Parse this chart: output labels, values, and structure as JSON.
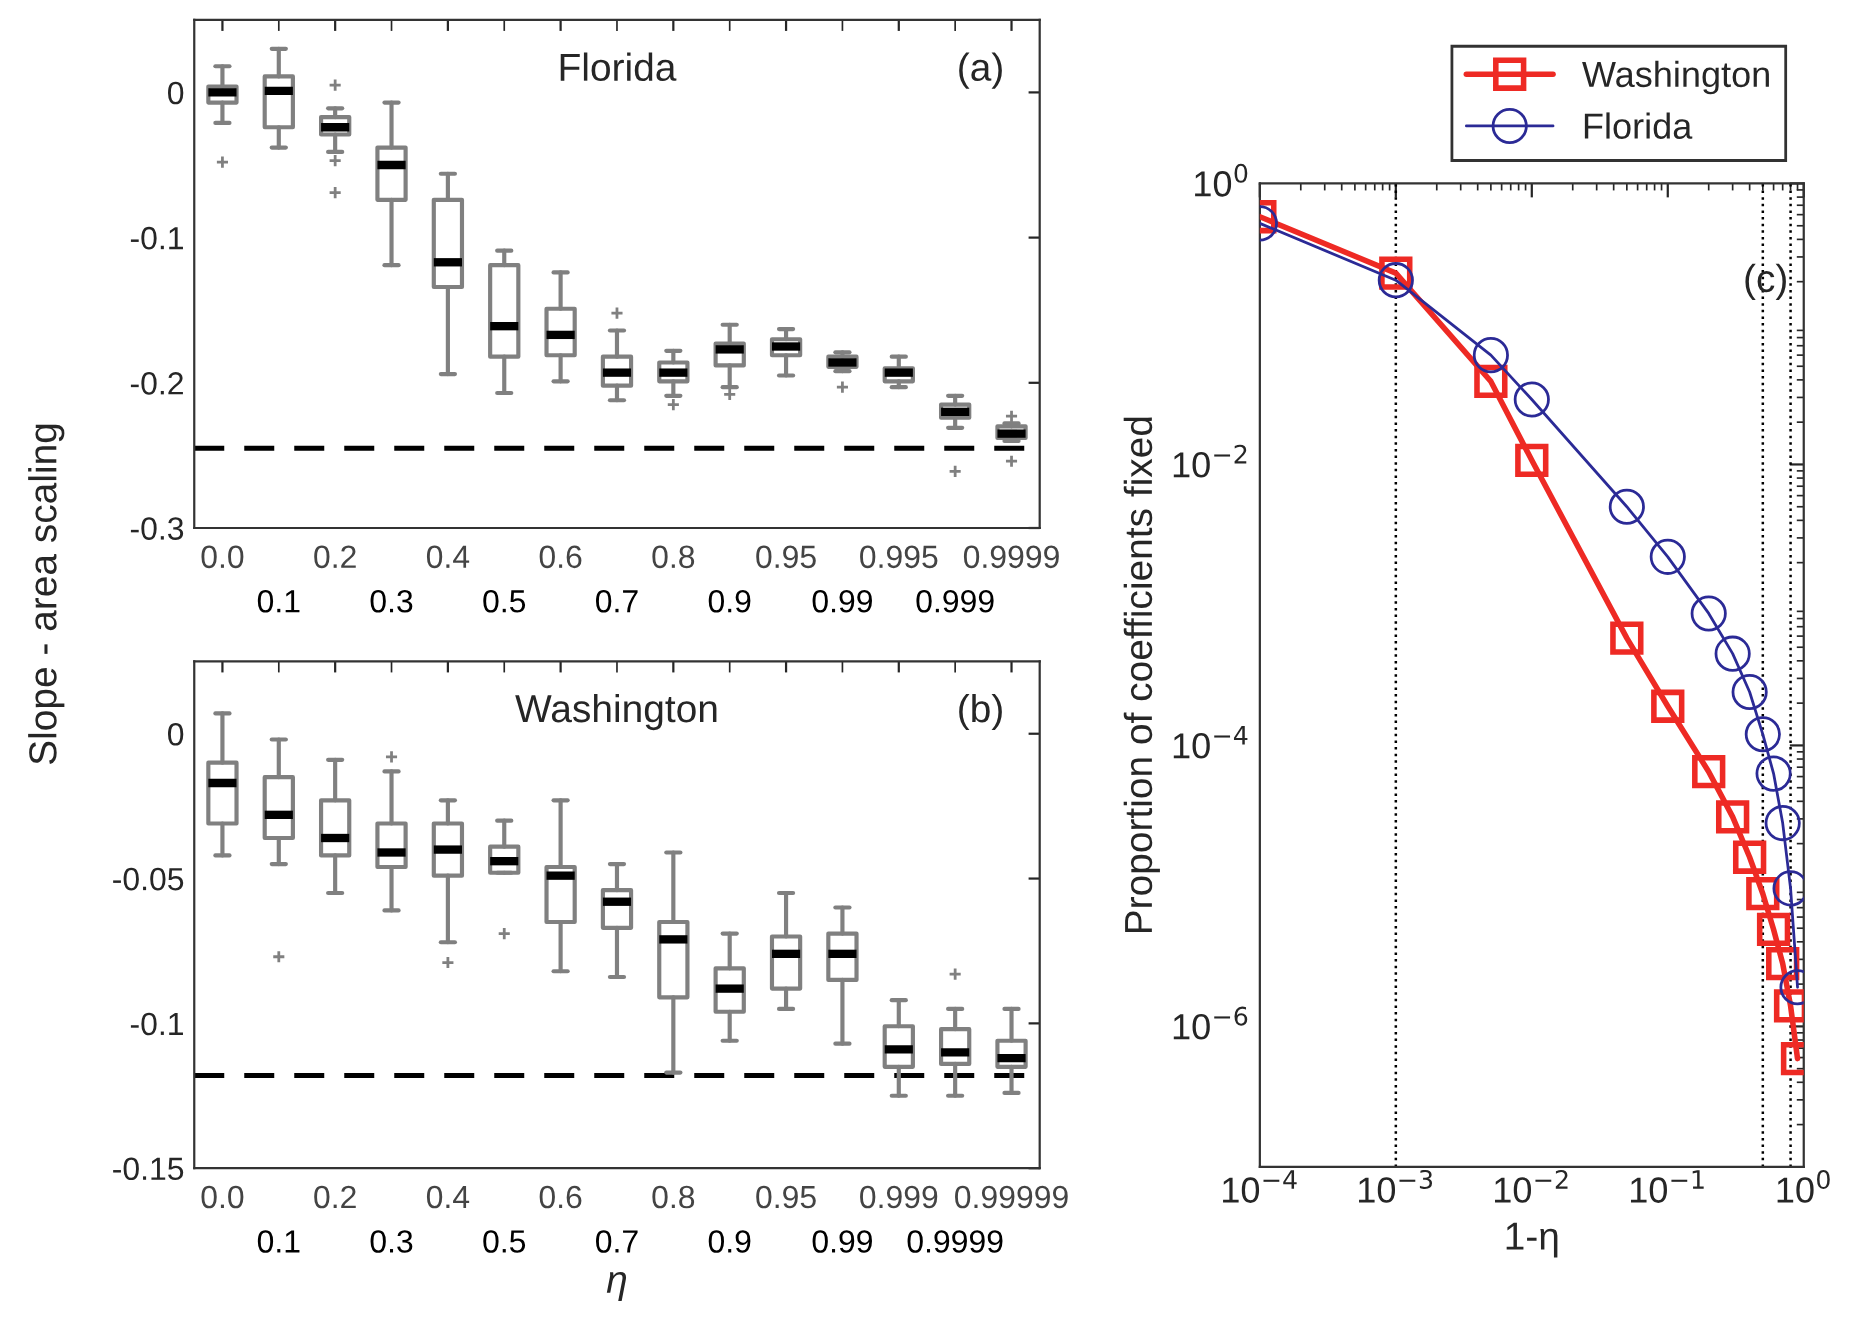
{
  "chart_data": [
    {
      "type": "box",
      "title": "Florida",
      "ylabel": "Slope - area scaling",
      "annotations": [
        "(a)"
      ],
      "categories": [
        "0.0",
        "0.1",
        "0.2",
        "0.3",
        "0.4",
        "0.5",
        "0.6",
        "0.7",
        "0.8",
        "0.9",
        "0.95",
        "0.99",
        "0.995",
        "0.999",
        "0.9999"
      ],
      "ylim": [
        -0.3,
        0.05
      ],
      "yticks": [
        -0.3,
        -0.2,
        -0.1,
        0
      ],
      "ref_lines": [
        {
          "axis": "y",
          "value": -0.245,
          "color": "#000000",
          "line_style": "dashed"
        }
      ],
      "series": [
        {
          "color": "#808080",
          "boxes": [
            {
              "low": -0.021,
              "q1": -0.007,
              "median": 0,
              "q3": 0.004,
              "high": 0.018,
              "outliers": [
                -0.048
              ]
            },
            {
              "low": -0.038,
              "q1": -0.024,
              "median": 0.001,
              "q3": 0.011,
              "high": 0.03
            },
            {
              "low": -0.041,
              "q1": -0.029,
              "median": -0.024,
              "q3": -0.017,
              "high": -0.011,
              "outliers": [
                0.005,
                -0.047,
                -0.069
              ]
            },
            {
              "low": -0.119,
              "q1": -0.074,
              "median": -0.05,
              "q3": -0.038,
              "high": -0.007
            },
            {
              "low": -0.194,
              "q1": -0.134,
              "median": -0.117,
              "q3": -0.074,
              "high": -0.056
            },
            {
              "low": -0.207,
              "q1": -0.182,
              "median": -0.161,
              "q3": -0.119,
              "high": -0.109
            },
            {
              "low": -0.199,
              "q1": -0.181,
              "median": -0.167,
              "q3": -0.149,
              "high": -0.124
            },
            {
              "low": -0.212,
              "q1": -0.202,
              "median": -0.193,
              "q3": -0.182,
              "high": -0.164,
              "outliers": [
                -0.152
              ]
            },
            {
              "low": -0.209,
              "q1": -0.199,
              "median": -0.193,
              "q3": -0.186,
              "high": -0.178,
              "outliers": [
                -0.215
              ]
            },
            {
              "low": -0.203,
              "q1": -0.188,
              "median": -0.177,
              "q3": -0.173,
              "high": -0.16,
              "outliers": [
                -0.208
              ]
            },
            {
              "low": -0.195,
              "q1": -0.181,
              "median": -0.175,
              "q3": -0.17,
              "high": -0.163
            },
            {
              "low": -0.192,
              "q1": -0.189,
              "median": -0.186,
              "q3": -0.182,
              "high": -0.179,
              "outliers": [
                -0.203
              ]
            },
            {
              "low": -0.203,
              "q1": -0.199,
              "median": -0.193,
              "q3": -0.19,
              "high": -0.182
            },
            {
              "low": -0.231,
              "q1": -0.224,
              "median": -0.22,
              "q3": -0.215,
              "high": -0.209,
              "outliers": [
                -0.261
              ]
            },
            {
              "low": -0.24,
              "q1": -0.238,
              "median": -0.235,
              "q3": -0.23,
              "high": -0.228,
              "outliers": [
                -0.223,
                -0.254
              ]
            }
          ]
        }
      ]
    },
    {
      "type": "box",
      "title": "Washington",
      "xlabel": "η",
      "annotations": [
        "(b)"
      ],
      "categories": [
        "0.0",
        "0.1",
        "0.2",
        "0.3",
        "0.4",
        "0.5",
        "0.6",
        "0.7",
        "0.8",
        "0.9",
        "0.95",
        "0.99",
        "0.999",
        "0.9999",
        "0.99999"
      ],
      "ylim": [
        -0.15,
        0.025
      ],
      "yticks": [
        -0.15,
        -0.1,
        -0.05,
        0
      ],
      "ref_lines": [
        {
          "axis": "y",
          "value": -0.118,
          "color": "#000000",
          "line_style": "dashed"
        }
      ],
      "series": [
        {
          "color": "#808080",
          "boxes": [
            {
              "low": -0.042,
              "q1": -0.031,
              "median": -0.017,
              "q3": -0.01,
              "high": 0.007
            },
            {
              "low": -0.045,
              "q1": -0.036,
              "median": -0.028,
              "q3": -0.015,
              "high": -0.002,
              "outliers": [
                -0.077
              ]
            },
            {
              "low": -0.055,
              "q1": -0.042,
              "median": -0.036,
              "q3": -0.023,
              "high": -0.009
            },
            {
              "low": -0.061,
              "q1": -0.046,
              "median": -0.041,
              "q3": -0.031,
              "high": -0.013,
              "outliers": [
                -0.008
              ]
            },
            {
              "low": -0.072,
              "q1": -0.049,
              "median": -0.04,
              "q3": -0.031,
              "high": -0.023,
              "outliers": [
                -0.079
              ]
            },
            {
              "low": -0.048,
              "q1": -0.048,
              "median": -0.044,
              "q3": -0.039,
              "high": -0.03,
              "outliers": [
                -0.069
              ]
            },
            {
              "low": -0.082,
              "q1": -0.065,
              "median": -0.049,
              "q3": -0.046,
              "high": -0.023
            },
            {
              "low": -0.084,
              "q1": -0.067,
              "median": -0.058,
              "q3": -0.054,
              "high": -0.045
            },
            {
              "low": -0.117,
              "q1": -0.091,
              "median": -0.071,
              "q3": -0.065,
              "high": -0.041
            },
            {
              "low": -0.106,
              "q1": -0.096,
              "median": -0.088,
              "q3": -0.081,
              "high": -0.069
            },
            {
              "low": -0.095,
              "q1": -0.088,
              "median": -0.076,
              "q3": -0.07,
              "high": -0.055
            },
            {
              "low": -0.107,
              "q1": -0.085,
              "median": -0.076,
              "q3": -0.069,
              "high": -0.06
            },
            {
              "low": -0.125,
              "q1": -0.115,
              "median": -0.109,
              "q3": -0.101,
              "high": -0.092
            },
            {
              "low": -0.125,
              "q1": -0.114,
              "median": -0.11,
              "q3": -0.102,
              "high": -0.095,
              "outliers": [
                -0.083
              ]
            },
            {
              "low": -0.124,
              "q1": -0.115,
              "median": -0.112,
              "q3": -0.106,
              "high": -0.095
            }
          ]
        }
      ]
    },
    {
      "type": "line",
      "xlabel": "1-η",
      "ylabel": "Proportion of coefficients fixed",
      "annotations": [
        "(c)"
      ],
      "log": "xy",
      "legend": "top right",
      "xlim": [
        0.0001,
        1
      ],
      "xticks": [
        {
          "value": 0.0001,
          "label": "10$^{−4}$"
        },
        {
          "value": 0.001,
          "label": "10$^{−3}$"
        },
        {
          "value": 0.01,
          "label": "10$^{−2}$"
        },
        {
          "value": 0.1,
          "label": "10$^{−1}$"
        },
        {
          "value": 1,
          "label": "10$^{0}$"
        }
      ],
      "ylim": [
        1e-07,
        1
      ],
      "yticks": [
        {
          "value": 1e-06,
          "label": "10$^{−6}$"
        },
        {
          "value": 0.0001,
          "label": "10$^{−4}$"
        },
        {
          "value": 0.01,
          "label": "10$^{−2}$"
        },
        {
          "value": 1,
          "label": "10$^{0}$"
        }
      ],
      "ref_lines": [
        {
          "axis": "x",
          "value": 0.001,
          "color": "#000000",
          "line_style": "dotted"
        },
        {
          "axis": "x",
          "value": 0.5,
          "color": "#000000",
          "line_style": "dotted"
        },
        {
          "axis": "x",
          "value": 0.8,
          "color": "#000000",
          "line_style": "dotted"
        }
      ],
      "series": [
        {
          "name": "Washington",
          "color": "#ee2a24",
          "marker": "square",
          "x": [
            0.0001,
            0.001,
            0.005,
            0.01,
            0.05,
            0.1,
            0.2,
            0.3,
            0.4,
            0.5,
            0.6,
            0.7,
            0.8,
            0.9
          ],
          "values": [
            0.58,
            0.23,
            0.039,
            0.0107,
            0.00058,
            0.00019,
            6.5e-05,
            3.1e-05,
            1.6e-05,
            8.8e-06,
            4.9e-06,
            2.8e-06,
            1.4e-06,
            5.9e-07
          ]
        },
        {
          "name": "Florida",
          "color": "#2b2a96",
          "marker": "circle",
          "x": [
            0.0001,
            0.001,
            0.005,
            0.01,
            0.05,
            0.1,
            0.2,
            0.3,
            0.4,
            0.5,
            0.6,
            0.7,
            0.8,
            0.9
          ],
          "values": [
            0.52,
            0.205,
            0.06,
            0.029,
            0.005,
            0.0022,
            0.00087,
            0.00045,
            0.00024,
            0.00012,
            6.3e-05,
            2.8e-05,
            9.6e-06,
            1.9e-06
          ]
        }
      ]
    }
  ]
}
